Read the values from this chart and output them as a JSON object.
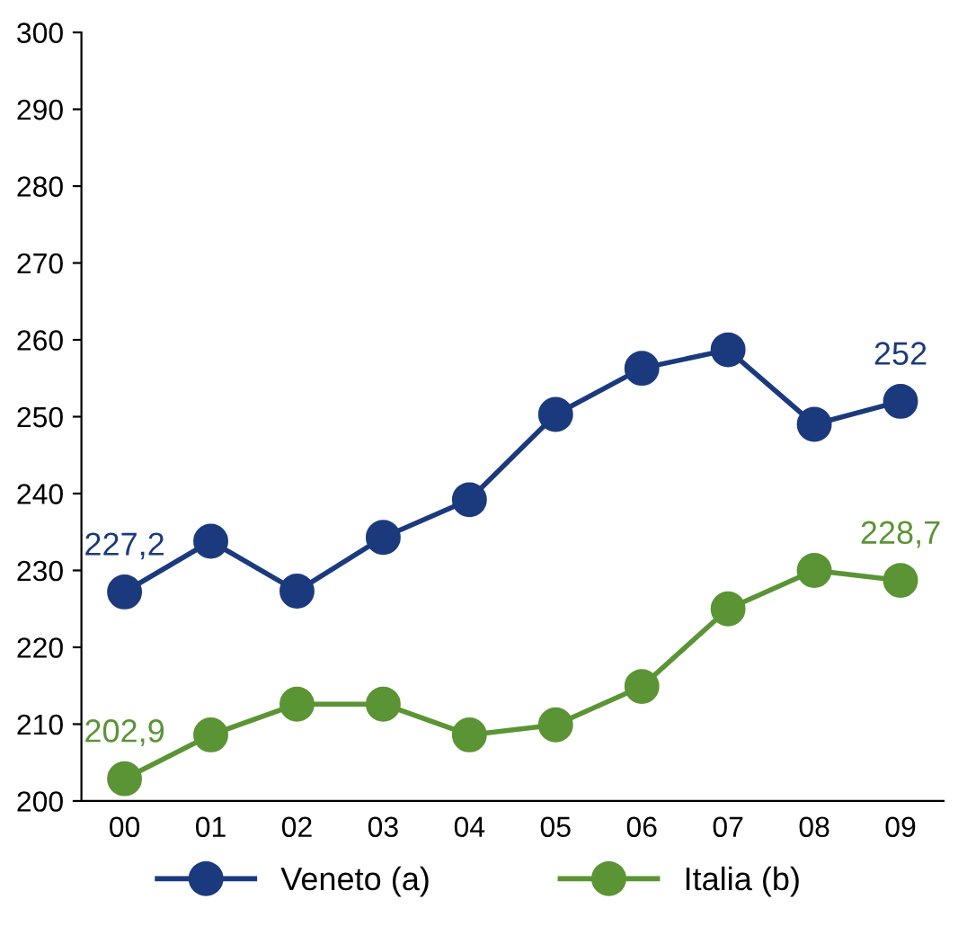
{
  "chart_data": {
    "type": "line",
    "categories": [
      "00",
      "01",
      "02",
      "03",
      "04",
      "05",
      "06",
      "07",
      "08",
      "09"
    ],
    "series": [
      {
        "name": "Veneto (a)",
        "color": "#1b3a7e",
        "values": [
          227.2,
          233.8,
          227.3,
          234.3,
          239.2,
          250.3,
          256.3,
          258.7,
          249.0,
          252
        ],
        "value_labels": [
          "227,2",
          null,
          null,
          null,
          null,
          null,
          null,
          null,
          null,
          "252"
        ]
      },
      {
        "name": "Italia (b)",
        "color": "#5b9434",
        "values": [
          202.9,
          208.6,
          212.6,
          212.6,
          208.6,
          209.9,
          214.9,
          225.0,
          230.0,
          228.7
        ],
        "value_labels": [
          "202,9",
          null,
          null,
          null,
          null,
          null,
          null,
          null,
          null,
          "228,7"
        ]
      }
    ],
    "ylim": [
      200,
      300
    ],
    "yticks": [
      200,
      210,
      220,
      230,
      240,
      250,
      260,
      270,
      280,
      290,
      300
    ],
    "grid": false,
    "legend": "bottom",
    "marker": "circle",
    "line_style": "solid"
  }
}
